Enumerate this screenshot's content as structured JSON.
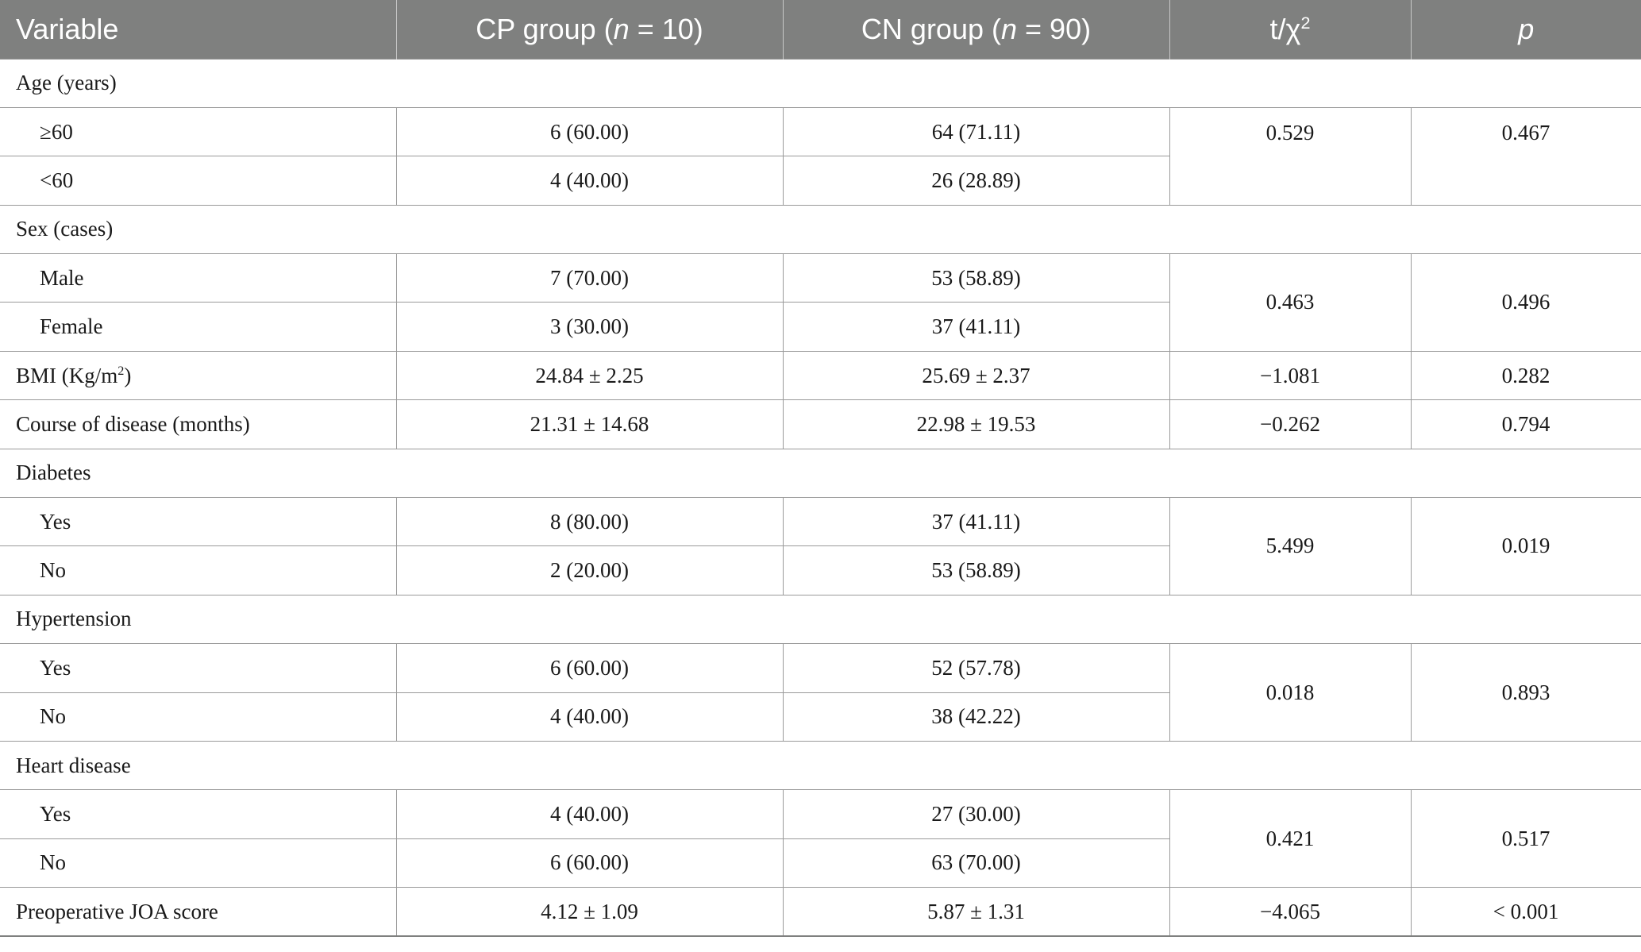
{
  "header": {
    "variable": "Variable",
    "cp_prefix": "CP group (",
    "cp_n": "n",
    "cp_suffix": " = 10)",
    "cn_prefix": "CN group (",
    "cn_n": "n",
    "cn_suffix": " = 90)",
    "stat_base": "t/χ",
    "stat_sup": "2",
    "p": "p"
  },
  "sections": {
    "age": {
      "label": "Age (years)",
      "r1": {
        "label": "≥60",
        "cp": "6 (60.00)",
        "cn": "64 (71.11)"
      },
      "r2": {
        "label": "<60",
        "cp": "4 (40.00)",
        "cn": "26 (28.89)"
      },
      "stat": "0.529",
      "p": "0.467"
    },
    "sex": {
      "label": "Sex (cases)",
      "r1": {
        "label": "Male",
        "cp": "7 (70.00)",
        "cn": "53 (58.89)"
      },
      "r2": {
        "label": "Female",
        "cp": "3 (30.00)",
        "cn": "37 (41.11)"
      },
      "stat": "0.463",
      "p": "0.496"
    },
    "diabetes": {
      "label": "Diabetes",
      "r1": {
        "label": "Yes",
        "cp": "8 (80.00)",
        "cn": "37 (41.11)"
      },
      "r2": {
        "label": "No",
        "cp": "2 (20.00)",
        "cn": "53 (58.89)"
      },
      "stat": "5.499",
      "p": "0.019"
    },
    "hypertension": {
      "label": "Hypertension",
      "r1": {
        "label": "Yes",
        "cp": "6 (60.00)",
        "cn": "52 (57.78)"
      },
      "r2": {
        "label": "No",
        "cp": "4 (40.00)",
        "cn": "38 (42.22)"
      },
      "stat": "0.018",
      "p": "0.893"
    },
    "heart": {
      "label": "Heart disease",
      "r1": {
        "label": "Yes",
        "cp": "4 (40.00)",
        "cn": "27 (30.00)"
      },
      "r2": {
        "label": "No",
        "cp": "6 (60.00)",
        "cn": "63 (70.00)"
      },
      "stat": "0.421",
      "p": "0.517"
    }
  },
  "single": {
    "bmi": {
      "label_base": "BMI (Kg/m",
      "label_sup": "2",
      "label_close": ")",
      "cp": "24.84 ± 2.25",
      "cn": "25.69 ± 2.37",
      "stat": "−1.081",
      "p": "0.282"
    },
    "course": {
      "label": "Course of disease (months)",
      "cp": "21.31 ± 14.68",
      "cn": "22.98 ± 19.53",
      "stat": "−0.262",
      "p": "0.794"
    },
    "joa": {
      "label": "Preoperative JOA score",
      "cp": "4.12 ± 1.09",
      "cn": "5.87 ± 1.31",
      "stat": "−4.065",
      "p": "< 0.001"
    }
  }
}
